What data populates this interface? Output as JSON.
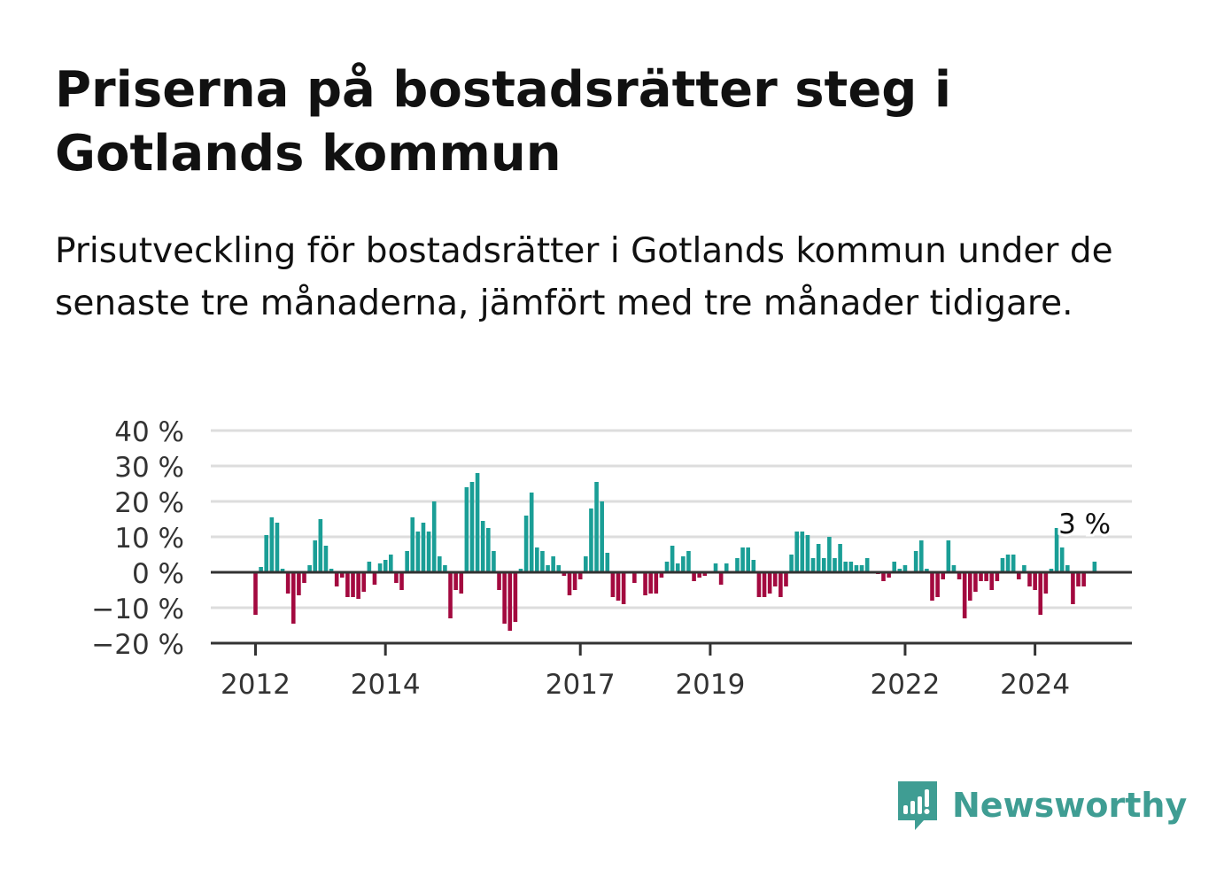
{
  "header": {
    "title": "Priserna på bostadsrätter steg i Gotlands kommun",
    "subtitle": "Prisutveckling för bostadsrätter i Gotlands kommun under de senaste tre månaderna, jämfört med tre månader tidigare."
  },
  "brand": {
    "name": "Newsworthy",
    "icon": "newsworthy-logo-icon",
    "color": "#3f9d93"
  },
  "chart_data": {
    "type": "bar",
    "unit": "%",
    "ylim": [
      -20,
      40
    ],
    "yticks": [
      -20,
      -10,
      0,
      10,
      20,
      30,
      40
    ],
    "ytick_labels": [
      "−20 %",
      "−10 %",
      "0 %",
      "10 %",
      "20 %",
      "30 %",
      "40 %"
    ],
    "xtick_labels": [
      "2012",
      "2014",
      "2017",
      "2019",
      "2022",
      "2024"
    ],
    "xtick_dates": [
      "2012-01",
      "2014-01",
      "2017-01",
      "2019-01",
      "2022-01",
      "2024-01"
    ],
    "grid": true,
    "legend": "none",
    "colors": {
      "positive": "#1a9e96",
      "negative": "#a3093f",
      "grid": "#dddddd",
      "axis": "#333333"
    },
    "start": "2012-01",
    "frequency": "monthly",
    "annotation": {
      "label": "3 %",
      "date": "2024-10",
      "value": 3
    },
    "series": [
      {
        "values": [
          -12,
          1.5,
          10.5,
          15.5,
          14,
          1,
          -6,
          -14.5,
          -6.5,
          -3,
          2,
          9,
          15,
          7.5,
          1,
          -4,
          -1.5,
          -7,
          -7,
          -7.5,
          -5.5,
          3,
          -3.5,
          2.5,
          3.5,
          5,
          -3,
          -5,
          6,
          15.5,
          11.5,
          14,
          11.5,
          20,
          4.5,
          2,
          -13,
          -5,
          -6,
          24,
          25.5,
          28,
          14.5,
          12.5,
          6,
          -5,
          -14.5,
          -16.5,
          -14,
          1,
          16,
          22.5,
          7,
          6,
          2,
          4.5,
          2,
          -1,
          -6.5,
          -5,
          -2,
          4.5,
          18,
          25.5,
          20,
          5.5,
          -7,
          -8,
          -9,
          0,
          -3,
          0,
          -6.5,
          -6,
          -6,
          -1.5,
          3,
          7.5,
          2.5,
          4.5,
          6,
          -2.5,
          -1.5,
          -1,
          0,
          2.5,
          -3.5,
          2.5,
          0,
          4,
          7,
          7,
          3.5,
          -7,
          -7,
          -6,
          -4,
          -7,
          -4,
          5,
          11.5,
          11.5,
          10.5,
          4,
          8,
          4,
          10,
          4,
          8,
          3,
          3,
          2,
          2,
          4,
          0,
          -0.5,
          -2.5,
          -1.5,
          3,
          1,
          2,
          0,
          6,
          9,
          1,
          -8,
          -7,
          -2,
          9,
          2,
          -2,
          -13,
          -8,
          -5.5,
          -2.5,
          -2.5,
          -5,
          -2.5,
          4,
          5,
          5,
          -2,
          2,
          -4,
          -5,
          -12,
          -6,
          1,
          12.5,
          7,
          2,
          -9,
          -4,
          -4,
          0,
          3
        ]
      }
    ]
  }
}
